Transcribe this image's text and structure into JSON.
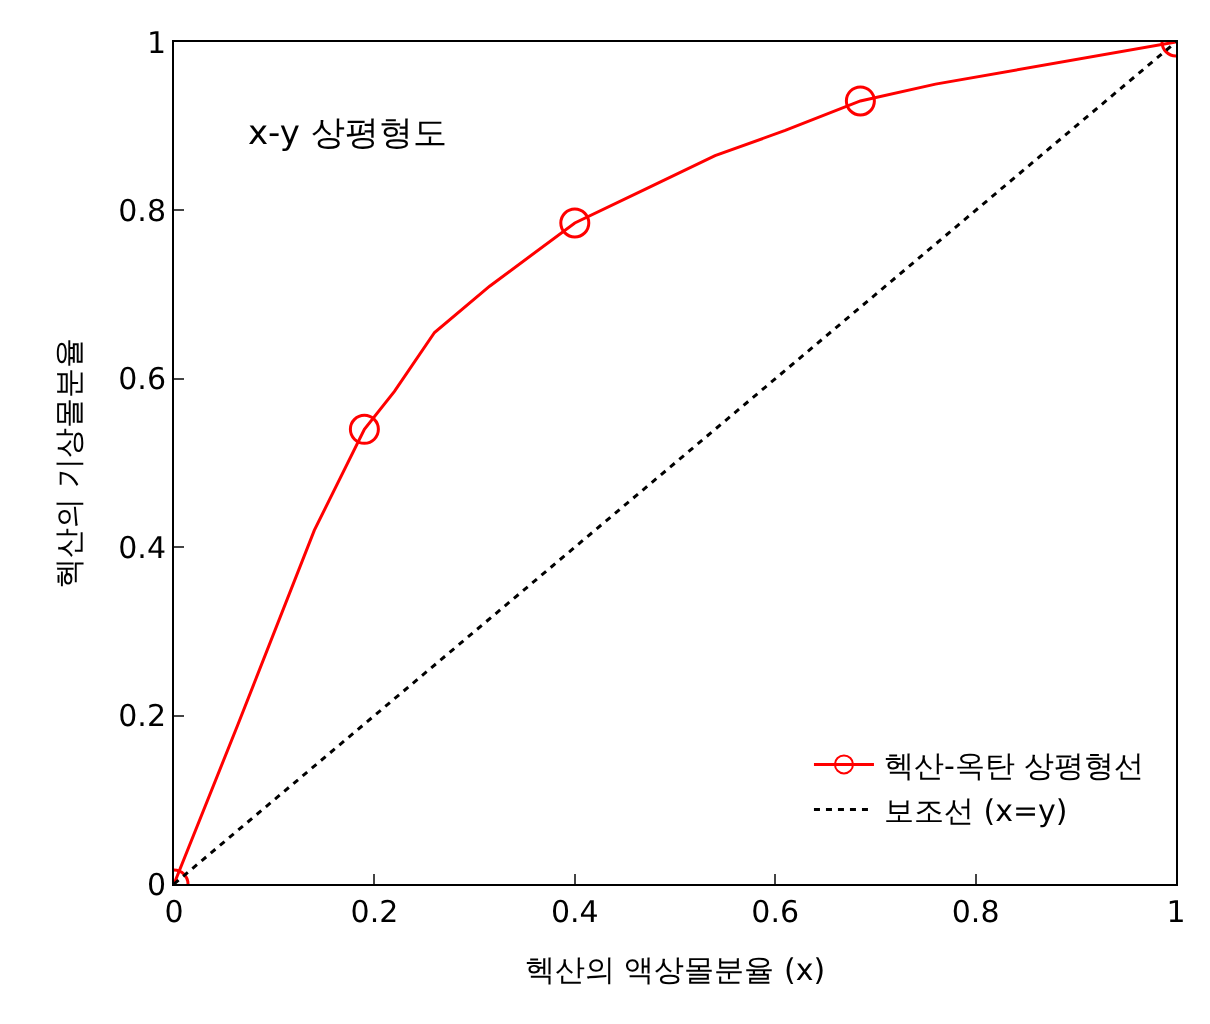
{
  "chart_data": {
    "type": "line",
    "xlabel": "헥산의 액상몰분율 (x)",
    "ylabel": "헥산의 기상몰분율",
    "annotations": [
      "x-y 상평형도"
    ],
    "xlim": [
      0,
      1
    ],
    "ylim": [
      0,
      1
    ],
    "xticks": [
      0,
      0.2,
      0.4,
      0.6,
      0.8,
      1
    ],
    "yticks": [
      0,
      0.2,
      0.4,
      0.6,
      0.8,
      1
    ],
    "legend": "bottom right",
    "series": [
      {
        "name": "헥산-옥탄 상평형선",
        "color": "#ff0000",
        "line_style": "solid",
        "x": [
          0,
          0.064,
          0.14,
          0.19,
          0.22,
          0.26,
          0.315,
          0.4,
          0.47,
          0.54,
          0.61,
          0.685,
          0.76,
          1
        ],
        "values": [
          0,
          0.19,
          0.42,
          0.54,
          0.585,
          0.655,
          0.71,
          0.785,
          0.825,
          0.865,
          0.895,
          0.93,
          0.95,
          1
        ]
      },
      {
        "color": "#ff0000",
        "type": "scatter",
        "marker": "circle",
        "x": [
          0,
          0.19,
          0.4,
          0.685,
          1
        ],
        "values": [
          0,
          0.54,
          0.785,
          0.93,
          1
        ]
      },
      {
        "name": "보조선 (x=y)",
        "color": "#000000",
        "line_style": "dotted",
        "x": [
          0,
          1
        ],
        "values": [
          0,
          1
        ]
      }
    ]
  }
}
